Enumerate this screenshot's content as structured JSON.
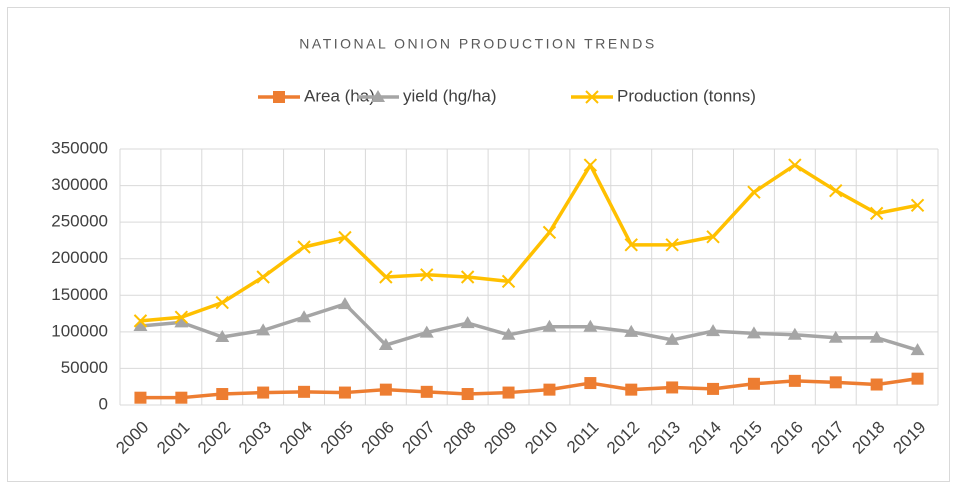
{
  "chart_data": {
    "type": "line",
    "title": "NATIONAL ONION PRODUCTION TRENDS",
    "categories": [
      "2000",
      "2001",
      "2002",
      "2003",
      "2004",
      "2005",
      "2006",
      "2007",
      "2008",
      "2009",
      "2010",
      "2011",
      "2012",
      "2013",
      "2014",
      "2015",
      "2016",
      "2017",
      "2018",
      "2019"
    ],
    "series": [
      {
        "name": "Area (ha)",
        "color": "#ED7D31",
        "marker": "square",
        "values": [
          10000,
          10000,
          15000,
          17000,
          18000,
          17000,
          21000,
          18000,
          15000,
          17000,
          21000,
          30000,
          21000,
          24000,
          22000,
          29000,
          33000,
          31000,
          28000,
          36000
        ]
      },
      {
        "name": "yield (hg/ha)",
        "color": "#A5A5A5",
        "marker": "triangle",
        "values": [
          108000,
          113000,
          93000,
          102000,
          120000,
          138000,
          82000,
          99000,
          112000,
          96000,
          107000,
          107000,
          100000,
          89000,
          101000,
          98000,
          96000,
          92000,
          92000,
          75000
        ]
      },
      {
        "name": "Production (tonns)",
        "color": "#FFC000",
        "marker": "x",
        "values": [
          115000,
          120000,
          140000,
          175000,
          216000,
          229000,
          175000,
          178000,
          175000,
          169000,
          236000,
          328000,
          219000,
          219000,
          230000,
          291000,
          328000,
          293000,
          262000,
          273000
        ]
      }
    ],
    "ylim": [
      0,
      350000
    ],
    "yticks": [
      0,
      50000,
      100000,
      150000,
      200000,
      250000,
      300000,
      350000
    ],
    "grid": true,
    "legend": "top"
  }
}
